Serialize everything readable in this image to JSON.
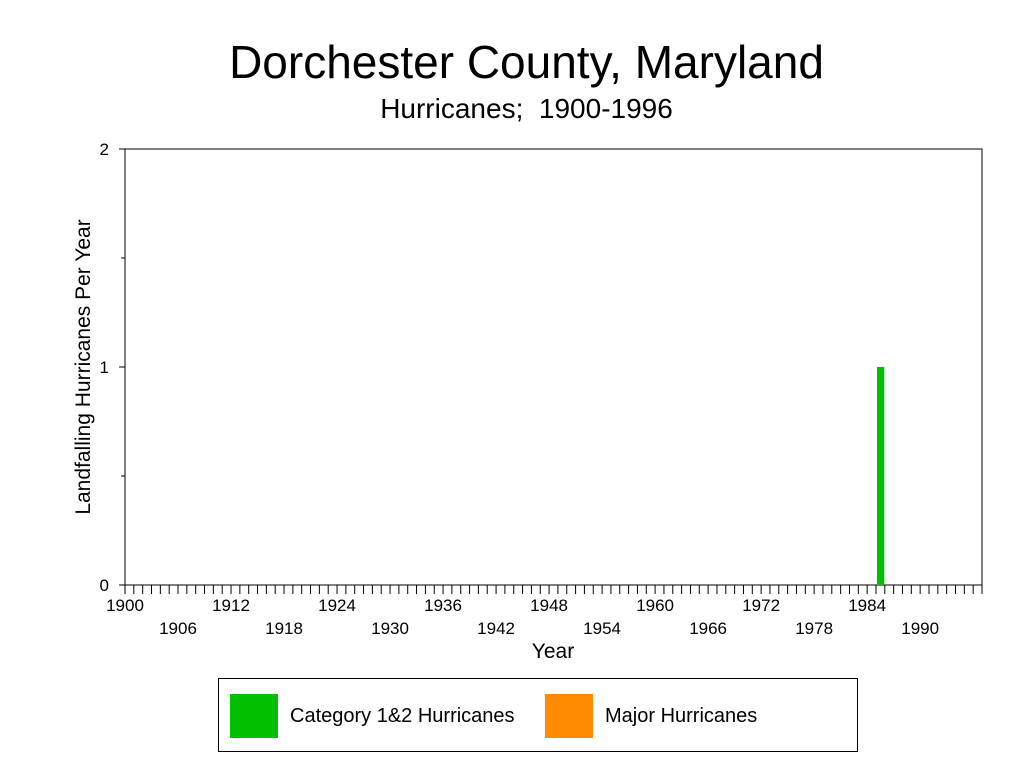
{
  "chart_data": {
    "type": "bar",
    "title": "Dorchester County, Maryland",
    "subtitle": "Hurricanes;  1900-1996",
    "xlabel": "Year",
    "ylabel": "Landfalling Hurricanes Per Year",
    "xlim": [
      1900,
      1997
    ],
    "ylim": [
      0,
      2
    ],
    "y_ticks": [
      "0",
      "1",
      "2"
    ],
    "x_tick_labels_upper": [
      "1900",
      "1912",
      "1924",
      "1936",
      "1948",
      "1960",
      "1972",
      "1984"
    ],
    "x_tick_labels_lower": [
      "1906",
      "1918",
      "1930",
      "1942",
      "1954",
      "1966",
      "1978",
      "1990"
    ],
    "series": [
      {
        "name": "Category 1&2 Hurricanes",
        "color": "#00c000",
        "points": [
          {
            "x": 1985,
            "y": 1
          }
        ]
      },
      {
        "name": "Major Hurricanes",
        "color": "#ff8c00",
        "points": []
      }
    ],
    "legend_position": "bottom",
    "grid": false
  }
}
